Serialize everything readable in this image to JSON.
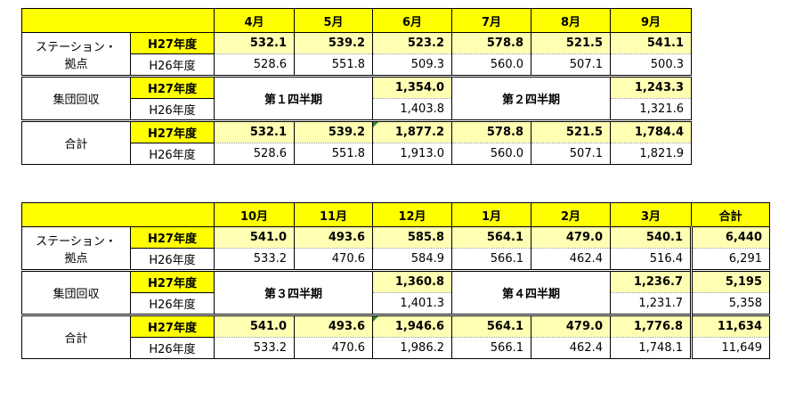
{
  "table1": {
    "months": [
      "4月",
      "5月",
      "6月",
      "7月",
      "8月",
      "9月"
    ],
    "station": {
      "label_line1": "ステーション・",
      "label_line2": "拠点",
      "h27_label": "H27年度",
      "h26_label": "H26年度",
      "h27": [
        "532.1",
        "539.2",
        "523.2",
        "578.8",
        "521.5",
        "541.1"
      ],
      "h26": [
        "528.6",
        "551.8",
        "509.3",
        "560.0",
        "507.1",
        "500.3"
      ]
    },
    "collect": {
      "label": "集団回収",
      "h27_label": "H27年度",
      "h26_label": "H26年度",
      "q1_label": "第１四半期",
      "q2_label": "第２四半期",
      "h27_q1": "1,354.0",
      "h26_q1": "1,403.8",
      "h27_q2": "1,243.3",
      "h26_q2": "1,321.6"
    },
    "total": {
      "label": "合計",
      "h27_label": "H27年度",
      "h26_label": "H26年度",
      "h27": [
        "532.1",
        "539.2",
        "1,877.2",
        "578.8",
        "521.5",
        "1,784.4"
      ],
      "h26": [
        "528.6",
        "551.8",
        "1,913.0",
        "560.0",
        "507.1",
        "1,821.9"
      ]
    }
  },
  "table2": {
    "months": [
      "10月",
      "11月",
      "12月",
      "1月",
      "2月",
      "3月"
    ],
    "total_header": "合計",
    "station": {
      "label_line1": "ステーション・",
      "label_line2": "拠点",
      "h27_label": "H27年度",
      "h26_label": "H26年度",
      "h27": [
        "541.0",
        "493.6",
        "585.8",
        "564.1",
        "479.0",
        "540.1"
      ],
      "h26": [
        "533.2",
        "470.6",
        "584.9",
        "566.1",
        "462.4",
        "516.4"
      ],
      "h27_total": "6,440",
      "h26_total": "6,291"
    },
    "collect": {
      "label": "集団回収",
      "h27_label": "H27年度",
      "h26_label": "H26年度",
      "q3_label": "第３四半期",
      "q4_label": "第４四半期",
      "h27_q3": "1,360.8",
      "h26_q3": "1,401.3",
      "h27_q4": "1,236.7",
      "h26_q4": "1,231.7",
      "h27_total": "5,195",
      "h26_total": "5,358"
    },
    "total": {
      "label": "合計",
      "h27_label": "H27年度",
      "h26_label": "H26年度",
      "h27": [
        "541.0",
        "493.6",
        "1,946.6",
        "564.1",
        "479.0",
        "1,776.8"
      ],
      "h26": [
        "533.2",
        "470.6",
        "1,986.2",
        "566.1",
        "462.4",
        "1,748.1"
      ],
      "h27_total": "11,634",
      "h26_total": "11,649"
    }
  }
}
